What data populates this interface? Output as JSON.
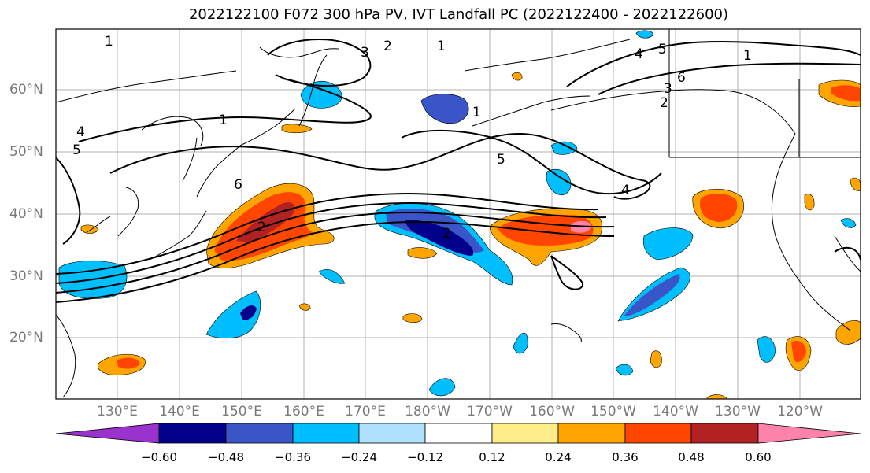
{
  "title": "2022122100 F072 300 hPa PV, IVT Landfall PC (2022122400 - 2022122600)",
  "lat_labels": [
    "60°N",
    "50°N",
    "40°N",
    "30°N",
    "20°N"
  ],
  "lon_labels": [
    "130°E",
    "140°E",
    "150°E",
    "160°E",
    "170°E",
    "180°W",
    "170°W",
    "160°W",
    "150°W",
    "140°W",
    "130°W",
    "120°W"
  ],
  "contour_labels": [
    "1",
    "2",
    "3",
    "4",
    "5",
    "6",
    "1",
    "2",
    "1",
    "5",
    "4",
    "1",
    "2",
    "3",
    "4",
    "5",
    "6",
    "2",
    "1"
  ],
  "colorbar": {
    "labels": [
      "−0.60",
      "−0.48",
      "−0.36",
      "−0.24",
      "−0.12",
      "0.12",
      "0.24",
      "0.36",
      "0.48",
      "0.60"
    ],
    "colors": [
      "#9a32cd",
      "#00008b",
      "#3a55c8",
      "#00bfff",
      "#b0e2ff",
      "#ffffff",
      "#ffec8b",
      "#ffa500",
      "#ff4500",
      "#b22222",
      "#ff82ab"
    ]
  },
  "colors": {
    "grid": "#b0b0b0",
    "contour": "#000000",
    "coast": "#000000"
  }
}
